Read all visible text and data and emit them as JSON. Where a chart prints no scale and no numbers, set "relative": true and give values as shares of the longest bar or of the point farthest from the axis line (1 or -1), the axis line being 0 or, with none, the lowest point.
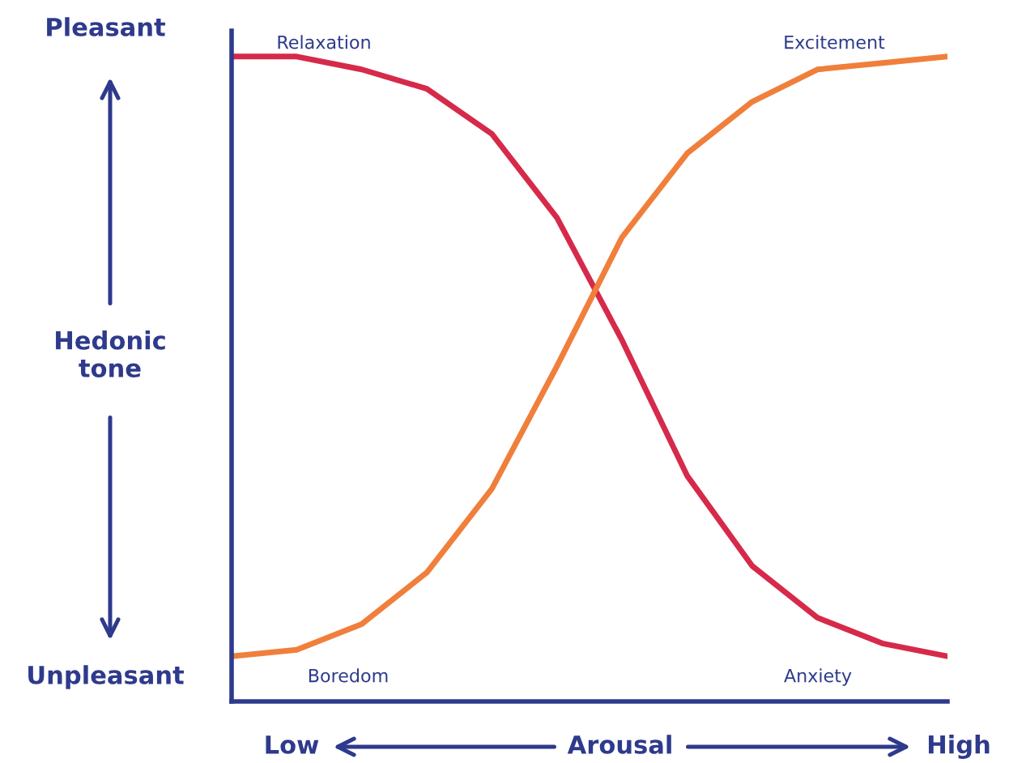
{
  "chart_data": {
    "type": "line",
    "relative": true,
    "xlabel": "Arousal",
    "ylabel": "Hedonic\ntone",
    "categories": [
      null,
      null,
      null,
      null,
      null,
      null,
      null,
      null,
      null,
      null,
      null,
      null
    ],
    "series": [
      {
        "color": "#d62a4a",
        "values": [
          1.0,
          1.0,
          0.98,
          0.95,
          0.88,
          0.75,
          0.56,
          0.35,
          0.21,
          0.13,
          0.09,
          0.07
        ]
      },
      {
        "color": "#f07f3c",
        "values": [
          0.07,
          0.08,
          0.12,
          0.2,
          0.33,
          0.52,
          0.72,
          0.85,
          0.93,
          0.98,
          0.99,
          1.0
        ]
      }
    ],
    "annotations": [
      "Relaxation",
      "Excitement",
      "Boredom",
      "Anxiety",
      "Pleasant",
      "Unpleasant",
      "Low",
      "High"
    ],
    "grid": false,
    "legend": false,
    "marker": "none",
    "line_style": "solid"
  }
}
